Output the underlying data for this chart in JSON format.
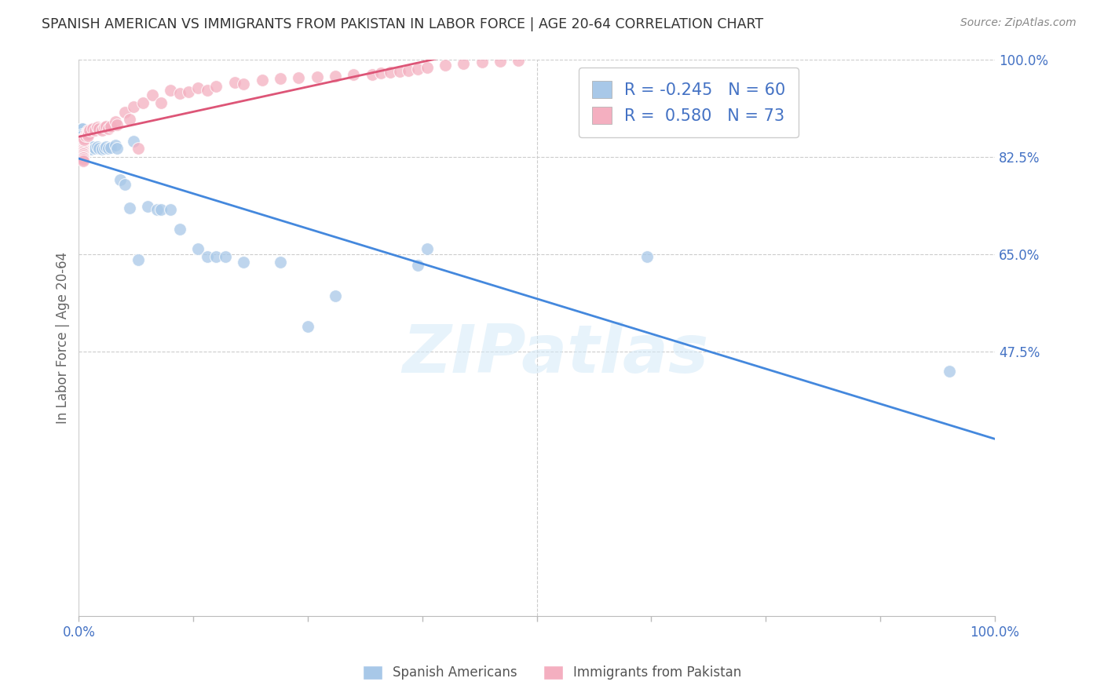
{
  "title": "SPANISH AMERICAN VS IMMIGRANTS FROM PAKISTAN IN LABOR FORCE | AGE 20-64 CORRELATION CHART",
  "source": "Source: ZipAtlas.com",
  "ylabel": "In Labor Force | Age 20-64",
  "blue_R": -0.245,
  "blue_N": 60,
  "pink_R": 0.58,
  "pink_N": 73,
  "blue_color": "#a8c8e8",
  "pink_color": "#f4afc0",
  "blue_line_color": "#4488dd",
  "pink_line_color": "#dd5577",
  "legend_label_blue": "Spanish Americans",
  "legend_label_pink": "Immigrants from Pakistan",
  "watermark": "ZIPatlas",
  "xlim": [
    0.0,
    1.0
  ],
  "ylim": [
    0.0,
    1.0
  ],
  "right_yticks": [
    0.475,
    0.65,
    0.825,
    1.0
  ],
  "right_yticklabels": [
    "47.5%",
    "65.0%",
    "82.5%",
    "100.0%"
  ],
  "xticks": [
    0.0,
    0.125,
    0.25,
    0.375,
    0.5,
    0.625,
    0.75,
    0.875,
    1.0
  ],
  "xticklabels": [
    "0.0%",
    "",
    "",
    "",
    "",
    "",
    "",
    "",
    "100.0%"
  ],
  "blue_x": [
    0.003,
    0.004,
    0.004,
    0.004,
    0.005,
    0.005,
    0.005,
    0.005,
    0.005,
    0.005,
    0.005,
    0.005,
    0.005,
    0.005,
    0.005,
    0.005,
    0.006,
    0.006,
    0.006,
    0.007,
    0.008,
    0.009,
    0.01,
    0.01,
    0.01,
    0.012,
    0.013,
    0.015,
    0.018,
    0.02,
    0.022,
    0.025,
    0.028,
    0.03,
    0.032,
    0.035,
    0.04,
    0.042,
    0.045,
    0.05,
    0.055,
    0.06,
    0.065,
    0.075,
    0.085,
    0.09,
    0.1,
    0.11,
    0.13,
    0.14,
    0.15,
    0.16,
    0.18,
    0.22,
    0.25,
    0.28,
    0.37,
    0.38,
    0.62,
    0.95
  ],
  "blue_y": [
    0.875,
    0.875,
    0.865,
    0.862,
    0.855,
    0.85,
    0.845,
    0.843,
    0.84,
    0.838,
    0.835,
    0.833,
    0.83,
    0.828,
    0.825,
    0.822,
    0.842,
    0.84,
    0.838,
    0.84,
    0.842,
    0.84,
    0.845,
    0.84,
    0.838,
    0.84,
    0.838,
    0.843,
    0.84,
    0.843,
    0.84,
    0.838,
    0.84,
    0.843,
    0.84,
    0.842,
    0.845,
    0.84,
    0.783,
    0.775,
    0.733,
    0.853,
    0.64,
    0.735,
    0.73,
    0.73,
    0.73,
    0.695,
    0.66,
    0.645,
    0.645,
    0.645,
    0.635,
    0.635,
    0.52,
    0.575,
    0.63,
    0.66,
    0.645,
    0.44
  ],
  "pink_x": [
    0.003,
    0.004,
    0.005,
    0.005,
    0.005,
    0.005,
    0.005,
    0.005,
    0.005,
    0.005,
    0.005,
    0.005,
    0.005,
    0.005,
    0.005,
    0.005,
    0.005,
    0.005,
    0.006,
    0.006,
    0.007,
    0.008,
    0.009,
    0.01,
    0.01,
    0.01,
    0.01,
    0.01,
    0.012,
    0.015,
    0.018,
    0.02,
    0.022,
    0.025,
    0.028,
    0.03,
    0.032,
    0.035,
    0.04,
    0.042,
    0.05,
    0.055,
    0.06,
    0.065,
    0.07,
    0.08,
    0.09,
    0.1,
    0.11,
    0.12,
    0.13,
    0.14,
    0.15,
    0.17,
    0.18,
    0.2,
    0.22,
    0.24,
    0.26,
    0.28,
    0.3,
    0.32,
    0.33,
    0.34,
    0.35,
    0.36,
    0.37,
    0.38,
    0.4,
    0.42,
    0.44,
    0.46,
    0.48
  ],
  "pink_y": [
    0.857,
    0.855,
    0.852,
    0.85,
    0.847,
    0.845,
    0.843,
    0.84,
    0.838,
    0.836,
    0.834,
    0.832,
    0.83,
    0.828,
    0.825,
    0.823,
    0.82,
    0.818,
    0.858,
    0.855,
    0.862,
    0.868,
    0.865,
    0.873,
    0.87,
    0.868,
    0.865,
    0.862,
    0.872,
    0.875,
    0.873,
    0.878,
    0.875,
    0.873,
    0.878,
    0.88,
    0.875,
    0.88,
    0.888,
    0.882,
    0.905,
    0.892,
    0.915,
    0.84,
    0.922,
    0.936,
    0.922,
    0.945,
    0.938,
    0.942,
    0.948,
    0.945,
    0.952,
    0.958,
    0.955,
    0.962,
    0.965,
    0.967,
    0.968,
    0.97,
    0.972,
    0.973,
    0.975,
    0.977,
    0.978,
    0.98,
    0.982,
    0.985,
    0.99,
    0.992,
    0.995,
    0.997,
    0.998
  ]
}
